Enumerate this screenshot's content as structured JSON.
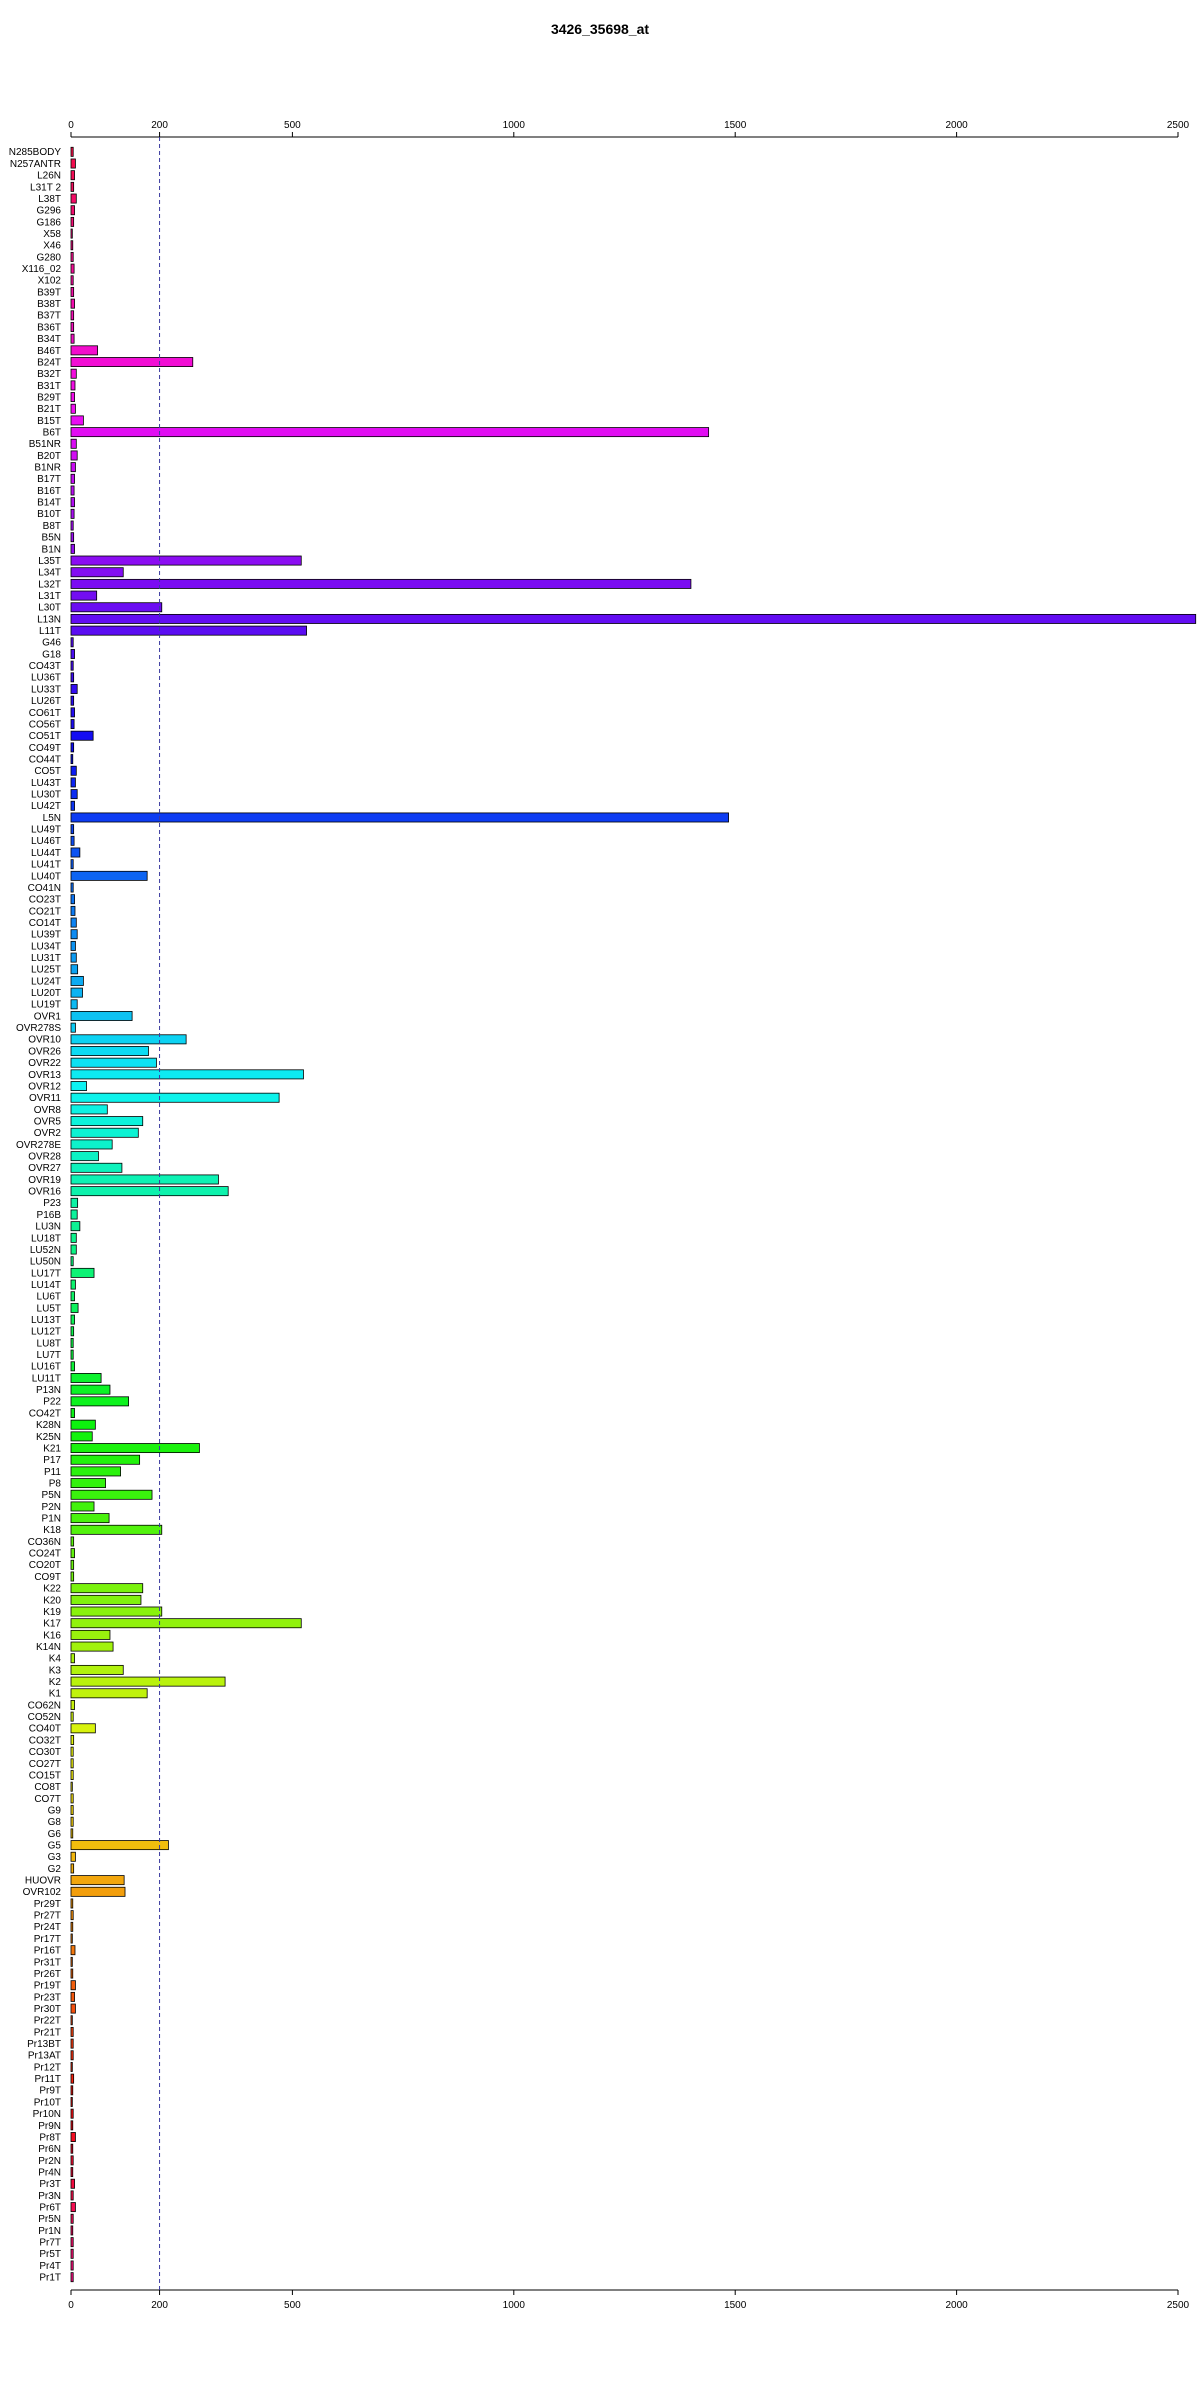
{
  "chart_data": {
    "type": "bar",
    "orientation": "horizontal",
    "title": "3426_35698_at",
    "xlim": [
      0,
      2500
    ],
    "xticks": [
      0,
      200,
      500,
      1000,
      1500,
      2000,
      2500
    ],
    "reference_line": 200,
    "categories": [
      "N285BODY",
      "N257ANTR",
      "L26N",
      "L31T 2",
      "L38T",
      "G296",
      "G186",
      "X58",
      "X46",
      "G280",
      "X116_02",
      "X102",
      "B39T",
      "B38T",
      "B37T",
      "B36T",
      "B34T",
      "B46T",
      "B24T",
      "B32T",
      "B31T",
      "B29T",
      "B21T",
      "B15T",
      "B6T",
      "B51NR",
      "B20T",
      "B1NR",
      "B17T",
      "B16T",
      "B14T",
      "B10T",
      "B8T",
      "B5N",
      "B1N",
      "L35T",
      "L34T",
      "L32T",
      "L31T",
      "L30T",
      "L13N",
      "L11T",
      "G46",
      "G18",
      "CO43T",
      "LU36T",
      "LU33T",
      "LU26T",
      "CO61T",
      "CO56T",
      "CO51T",
      "CO49T",
      "CO44T",
      "CO5T",
      "LU43T",
      "LU30T",
      "LU42T",
      "L5N",
      "LU49T",
      "LU46T",
      "LU44T",
      "LU41T",
      "LU40T",
      "CO41N",
      "CO23T",
      "CO21T",
      "CO14T",
      "LU39T",
      "LU34T",
      "LU31T",
      "LU25T",
      "LU24T",
      "LU20T",
      "LU19T",
      "OVR1",
      "OVR278S",
      "OVR10",
      "OVR26",
      "OVR22",
      "OVR13",
      "OVR12",
      "OVR11",
      "OVR8",
      "OVR5",
      "OVR2",
      "OVR278E",
      "OVR28",
      "OVR27",
      "OVR19",
      "OVR16",
      "P23",
      "P16B",
      "LU3N",
      "LU18T",
      "LU52N",
      "LU50N",
      "LU17T",
      "LU14T",
      "LU6T",
      "LU5T",
      "LU13T",
      "LU12T",
      "LU8T",
      "LU7T",
      "LU16T",
      "LU11T",
      "P13N",
      "P22",
      "CO42T",
      "K28N",
      "K25N",
      "K21",
      "P17",
      "P11",
      "P8",
      "P5N",
      "P2N",
      "P1N",
      "K18",
      "CO36N",
      "CO24T",
      "CO20T",
      "CO9T",
      "K22",
      "K20",
      "K19",
      "K17",
      "K16",
      "K14N",
      "K4",
      "K3",
      "K2",
      "K1",
      "CO62N",
      "CO52N",
      "CO40T",
      "CO32T",
      "CO30T",
      "CO27T",
      "CO15T",
      "CO8T",
      "CO7T",
      "G9",
      "G8",
      "G6",
      "G5",
      "G3",
      "G2",
      "HUOVR",
      "OVR102",
      "Pr29T",
      "Pr27T",
      "Pr24T",
      "Pr17T",
      "Pr16T",
      "Pr31T",
      "Pr26T",
      "Pr19T",
      "Pr23T",
      "Pr30T",
      "Pr22T",
      "Pr21T",
      "Pr13BT",
      "Pr13AT",
      "Pr12T",
      "Pr11T",
      "Pr9T",
      "Pr10T",
      "Pr10N",
      "Pr9N",
      "Pr8T",
      "Pr6N",
      "Pr2N",
      "Pr4N",
      "Pr3T",
      "Pr3N",
      "Pr6T",
      "Pr5N",
      "Pr1N",
      "Pr7T",
      "Pr5T",
      "Pr4T",
      "Pr1T"
    ],
    "values": [
      5,
      10,
      8,
      6,
      12,
      8,
      6,
      3,
      4,
      5,
      7,
      5,
      6,
      8,
      6,
      6,
      7,
      60,
      275,
      12,
      9,
      8,
      10,
      28,
      1440,
      12,
      14,
      10,
      8,
      7,
      8,
      7,
      5,
      6,
      8,
      520,
      118,
      1400,
      58,
      205,
      2540,
      532,
      5,
      8,
      5,
      6,
      14,
      6,
      8,
      7,
      50,
      6,
      4,
      12,
      10,
      14,
      8,
      1485,
      6,
      7,
      20,
      5,
      172,
      5,
      8,
      9,
      12,
      14,
      10,
      12,
      15,
      28,
      26,
      14,
      138,
      10,
      260,
      175,
      193,
      525,
      35,
      470,
      82,
      162,
      152,
      93,
      62,
      115,
      333,
      355,
      15,
      14,
      20,
      12,
      12,
      5,
      52,
      10,
      8,
      16,
      8,
      6,
      5,
      5,
      8,
      68,
      88,
      130,
      8,
      55,
      48,
      290,
      155,
      112,
      78,
      183,
      52,
      86,
      205,
      6,
      8,
      6,
      6,
      162,
      158,
      205,
      520,
      88,
      95,
      8,
      118,
      348,
      172,
      8,
      5,
      55,
      6,
      5,
      5,
      5,
      3,
      5,
      5,
      5,
      4,
      220,
      10,
      6,
      120,
      122,
      4,
      5,
      4,
      3,
      9,
      3,
      4,
      10,
      8,
      10,
      3,
      5,
      5,
      5,
      3,
      6,
      4,
      3,
      5,
      4,
      10,
      4,
      5,
      4,
      8,
      5,
      10,
      5,
      4,
      5,
      5,
      5,
      5
    ]
  }
}
